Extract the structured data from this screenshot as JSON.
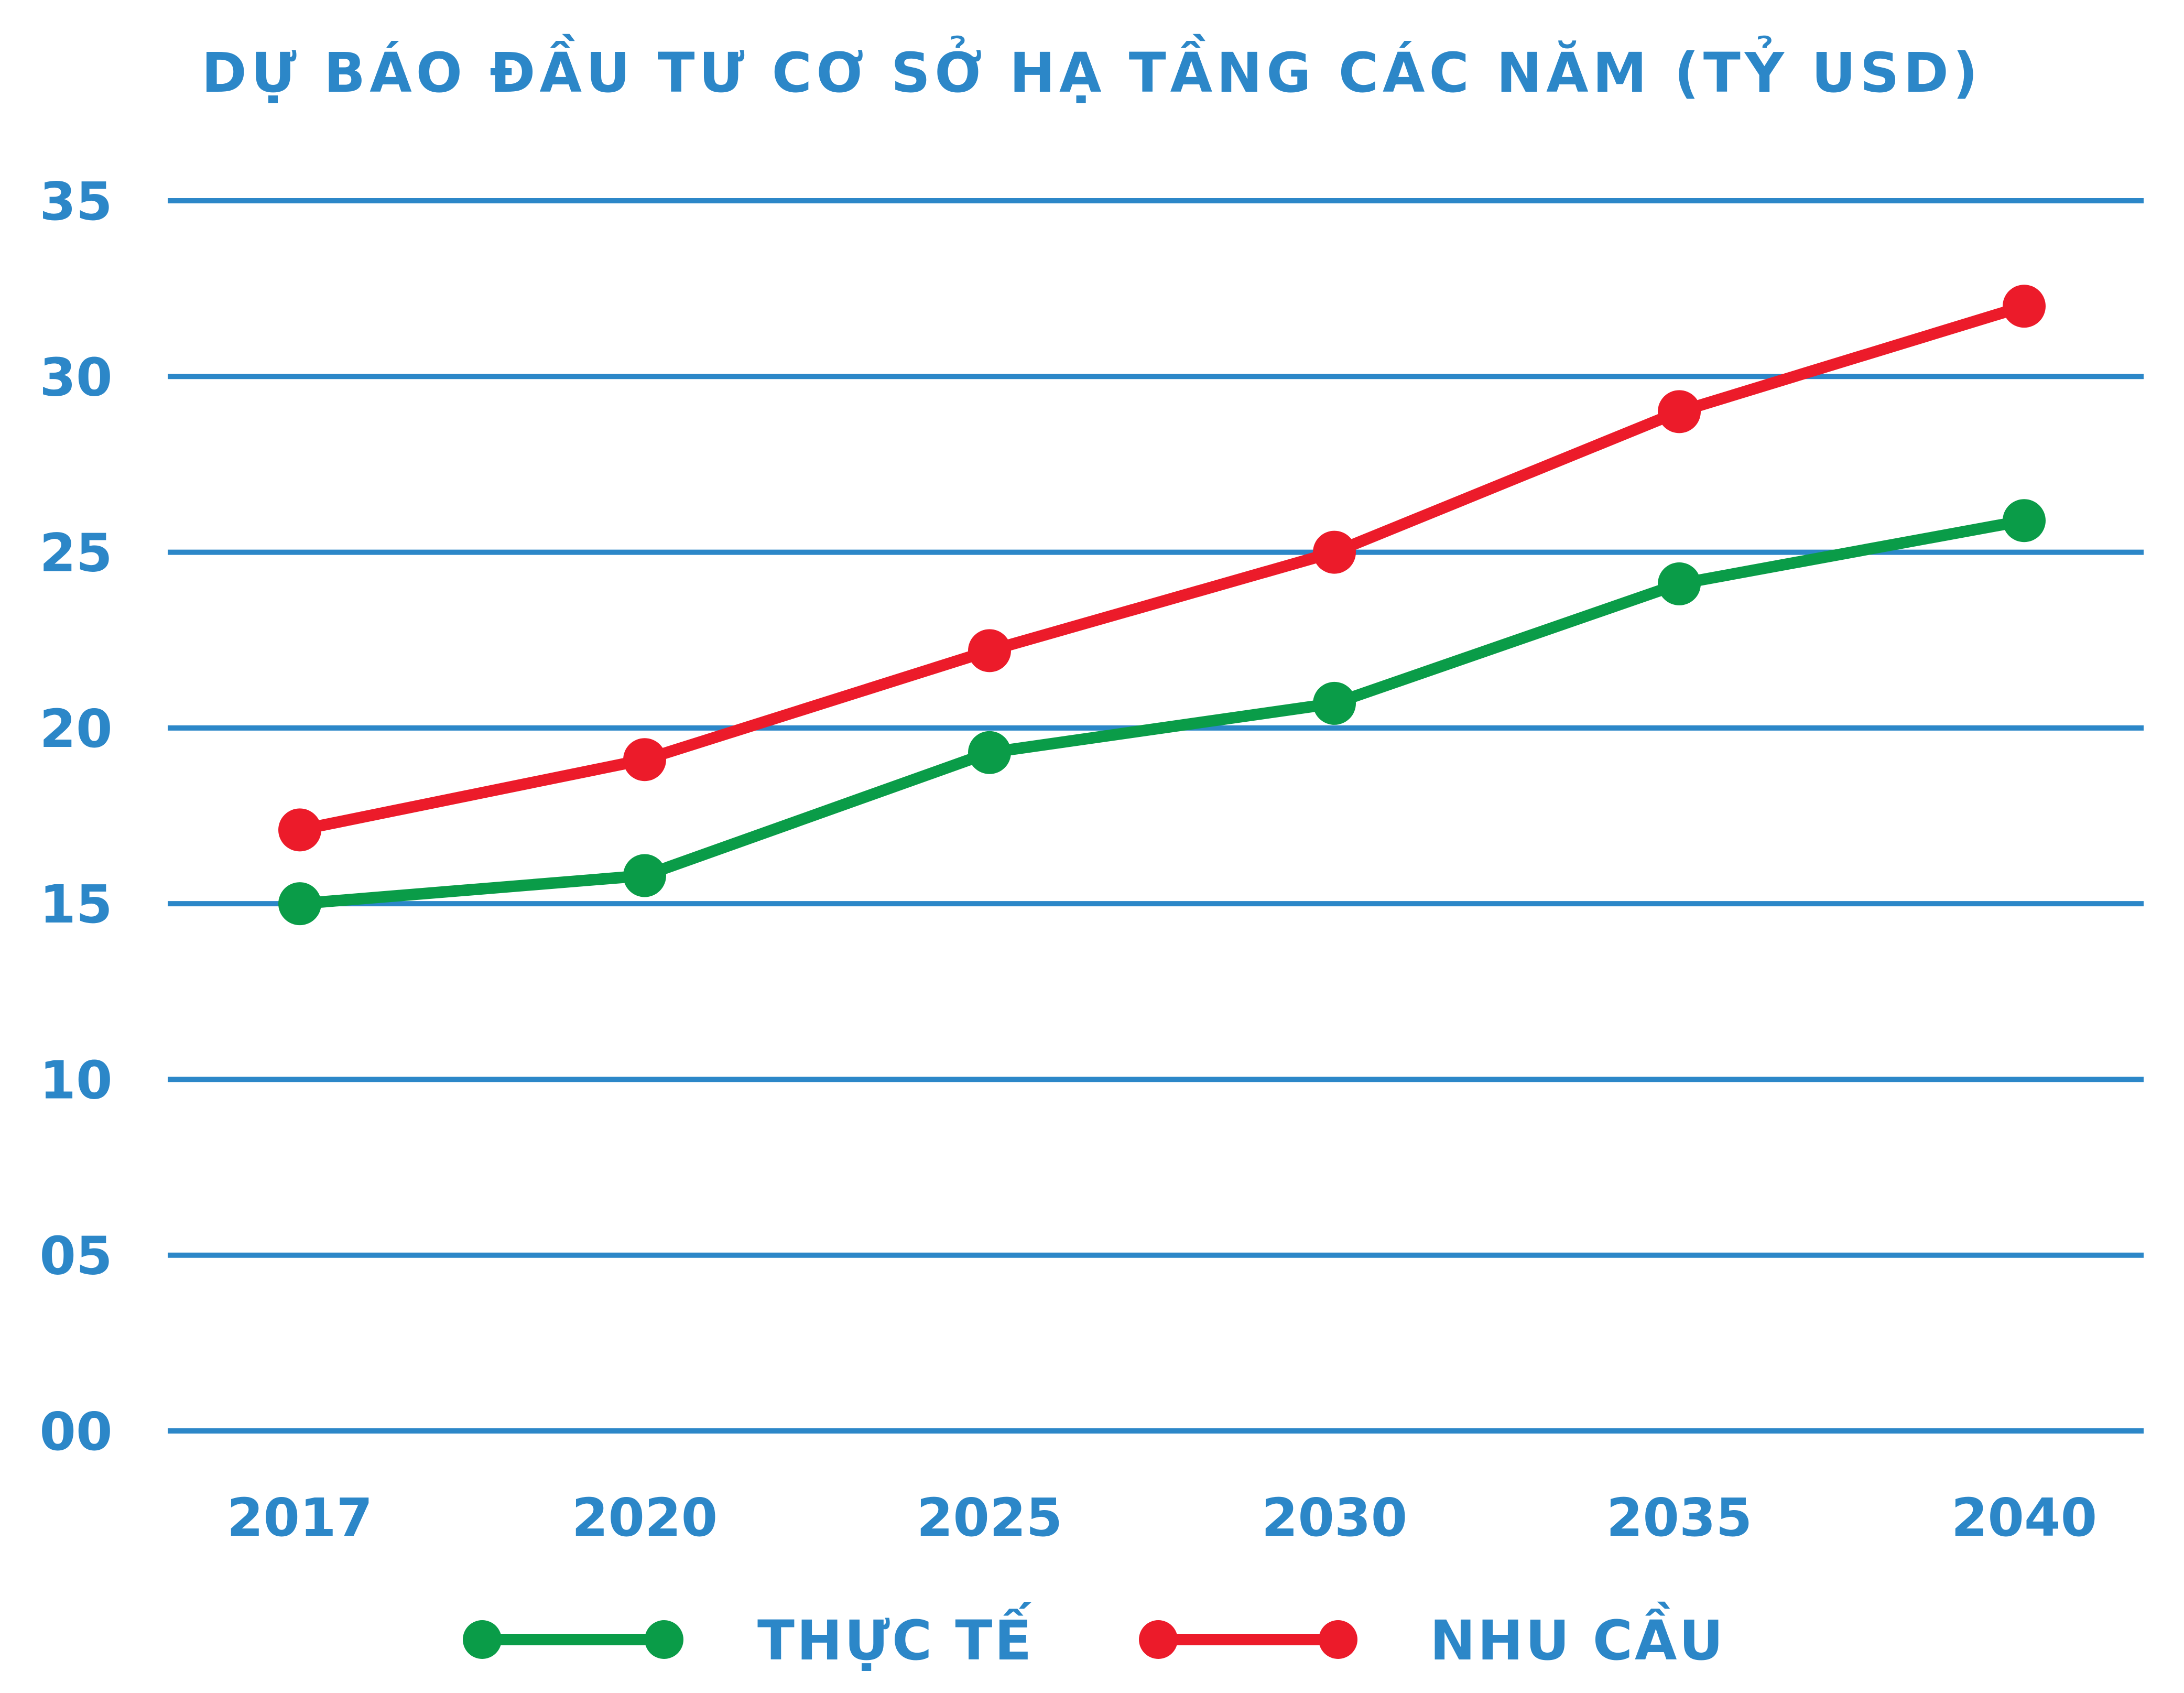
{
  "chart_data": {
    "type": "line",
    "title": "DỰ BÁO ĐẦU TƯ CƠ SỞ HẠ TẦNG CÁC NĂM (TỶ USD)",
    "xlabel": "",
    "ylabel": "",
    "categories": [
      "2017",
      "2020",
      "2025",
      "2030",
      "2035",
      "2040"
    ],
    "y_ticks": [
      "00",
      "05",
      "10",
      "15",
      "20",
      "25",
      "30",
      "35"
    ],
    "ylim": [
      0,
      35
    ],
    "grid": true,
    "legend_position": "bottom",
    "series": [
      {
        "name": "THỰC TẾ",
        "color": "#0a9c48",
        "values": [
          15,
          15.8,
          19.3,
          20.7,
          24.1,
          25.9
        ]
      },
      {
        "name": "NHU CẦU",
        "color": "#ec1b2a",
        "values": [
          17.1,
          19.1,
          22.2,
          25,
          29,
          32
        ]
      }
    ],
    "colors": {
      "text": "#2c87c8",
      "grid": "#2c87c8"
    }
  }
}
